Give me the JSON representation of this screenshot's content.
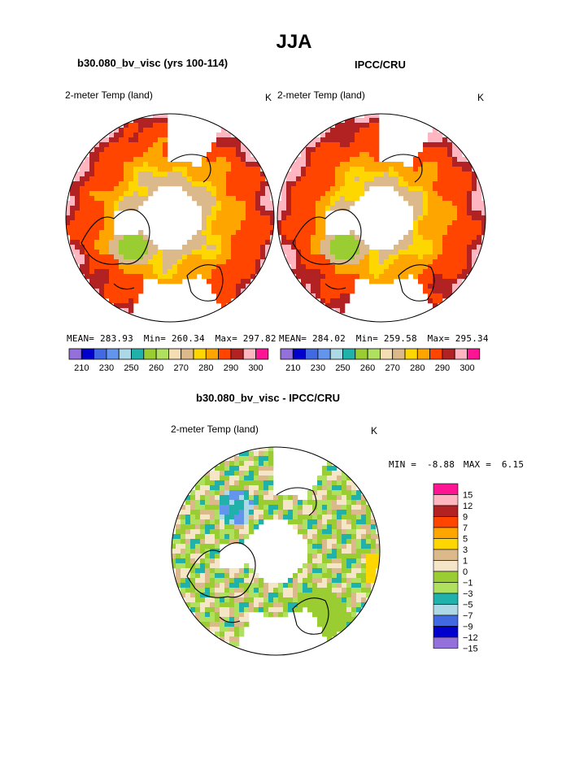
{
  "page": {
    "title": "JJA",
    "left_title": "b30.080_bv_visc (yrs 100-114)",
    "right_title": "IPCC/CRU",
    "diff_title": "b30.080_bv_visc - IPCC/CRU"
  },
  "chart_data": [
    {
      "type": "heatmap",
      "projection": "polar-stereographic (north)",
      "variable": "2-meter Temp (land)",
      "units": "K",
      "stats": {
        "mean_label": "MEAN=",
        "mean": "283.93",
        "min_label": "Min=",
        "min": "260.34",
        "max_label": "Max=",
        "max": "297.82"
      },
      "colorbar": {
        "colors": [
          "#9370db",
          "#0000cd",
          "#4169e1",
          "#6495ed",
          "#add8e6",
          "#20b2aa",
          "#9acd32",
          "#b0e060",
          "#f5deb3",
          "#dbb98a",
          "#ffd700",
          "#ffa500",
          "#ff4500",
          "#b22222",
          "#ffb6c1",
          "#ff1493"
        ],
        "tick_labels": [
          "210",
          "230",
          "250",
          "260",
          "270",
          "280",
          "290",
          "300"
        ]
      }
    },
    {
      "type": "heatmap",
      "projection": "polar-stereographic (north)",
      "variable": "2-meter Temp (land)",
      "units": "K",
      "stats": {
        "mean_label": "MEAN=",
        "mean": "284.02",
        "min_label": "Min=",
        "min": "259.58",
        "max_label": "Max=",
        "max": "295.34"
      },
      "colorbar": {
        "colors": [
          "#9370db",
          "#0000cd",
          "#4169e1",
          "#6495ed",
          "#add8e6",
          "#20b2aa",
          "#9acd32",
          "#b0e060",
          "#f5deb3",
          "#dbb98a",
          "#ffd700",
          "#ffa500",
          "#ff4500",
          "#b22222",
          "#ffb6c1",
          "#ff1493"
        ],
        "tick_labels": [
          "210",
          "230",
          "250",
          "260",
          "270",
          "280",
          "290",
          "300"
        ]
      }
    },
    {
      "type": "heatmap",
      "projection": "polar-stereographic (north)",
      "variable": "2-meter Temp (land)",
      "units": "K",
      "stats": {
        "min_label": "MIN =",
        "min": "-8.88",
        "max_label": "MAX =",
        "max": "6.15"
      },
      "colorbar": {
        "colors": [
          "#ff1493",
          "#ffb6c1",
          "#b22222",
          "#ff4500",
          "#ffa500",
          "#ffd700",
          "#dbb98a",
          "#f5e6c8",
          "#9acd32",
          "#b0e060",
          "#20b2aa",
          "#add8e6",
          "#4169e1",
          "#0000cd",
          "#9370db"
        ],
        "tick_labels": [
          "15",
          "12",
          "9",
          "7",
          "5",
          "3",
          "1",
          "0",
          "−1",
          "−3",
          "−5",
          "−7",
          "−9",
          "−12",
          "−15"
        ]
      }
    }
  ]
}
